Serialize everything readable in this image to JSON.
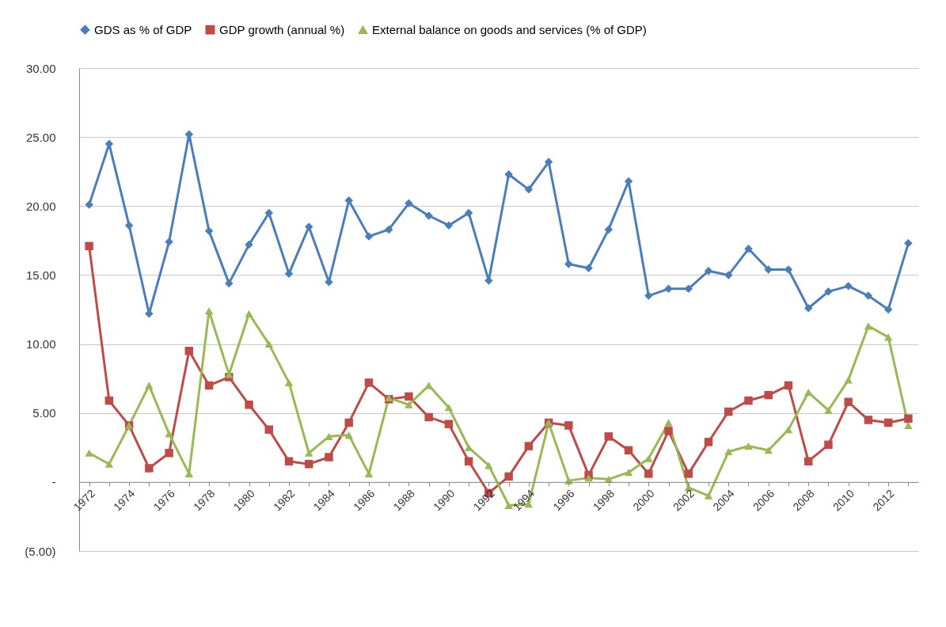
{
  "chart_data": {
    "type": "line",
    "categories": [
      "1972",
      null,
      "1974",
      null,
      "1976",
      null,
      "1978",
      null,
      "1980",
      null,
      "1982",
      null,
      "1984",
      null,
      "1986",
      null,
      "1988",
      null,
      "1990",
      null,
      "1992",
      null,
      "1994",
      null,
      "1996",
      null,
      "1998",
      null,
      "2000",
      null,
      "2002",
      null,
      "2004",
      null,
      "2006",
      null,
      "2008",
      null,
      "2010",
      null,
      "2012",
      null
    ],
    "series": [
      {
        "name": "GDS as % of GDP",
        "color": "#4a7ebb",
        "marker": "diamond",
        "values": [
          20.1,
          24.5,
          18.6,
          12.2,
          17.4,
          25.2,
          18.2,
          14.4,
          17.2,
          19.5,
          15.1,
          18.5,
          14.5,
          20.4,
          17.8,
          18.3,
          20.2,
          19.3,
          18.6,
          19.5,
          14.6,
          22.3,
          21.2,
          23.2,
          15.8,
          15.5,
          18.3,
          21.8,
          13.5,
          14.0,
          14.0,
          15.3,
          15.0,
          16.9,
          15.4,
          15.4,
          12.6,
          13.8,
          14.2,
          13.5,
          12.5,
          17.3
        ]
      },
      {
        "name": "GDP growth (annual %)",
        "color": "#be4b48",
        "marker": "square",
        "values": [
          17.1,
          5.9,
          4.1,
          1.0,
          2.1,
          9.5,
          7.0,
          7.6,
          5.6,
          3.8,
          1.5,
          1.3,
          1.8,
          4.3,
          7.2,
          6.0,
          6.2,
          4.7,
          4.2,
          1.5,
          -0.8,
          0.4,
          2.6,
          4.3,
          4.1,
          0.5,
          3.3,
          2.3,
          0.6,
          3.7,
          0.6,
          2.9,
          5.1,
          5.9,
          6.3,
          7.0,
          1.5,
          2.7,
          5.8,
          4.5,
          4.3,
          4.6
        ]
      },
      {
        "name": "External balance on goods and services (% of GDP)",
        "color": "#98b954",
        "marker": "triangle",
        "values": [
          2.1,
          1.3,
          4.1,
          7.0,
          3.5,
          0.6,
          12.4,
          7.8,
          12.2,
          10.0,
          7.2,
          2.1,
          3.3,
          3.4,
          0.6,
          6.1,
          5.6,
          7.0,
          5.4,
          2.5,
          1.2,
          -1.7,
          -1.6,
          4.3,
          0.1,
          0.3,
          0.2,
          0.7,
          1.7,
          4.3,
          -0.4,
          -1.0,
          2.2,
          2.6,
          2.3,
          3.8,
          6.5,
          5.2,
          7.4,
          11.3,
          10.5,
          4.1
        ]
      }
    ],
    "ylim": [
      -5,
      30
    ],
    "yticks": [
      {
        "value": -5,
        "label": "(5.00)"
      },
      {
        "value": 0,
        "label": "-"
      },
      {
        "value": 5,
        "label": "5.00"
      },
      {
        "value": 10,
        "label": "10.00"
      },
      {
        "value": 15,
        "label": "15.00"
      },
      {
        "value": 20,
        "label": "20.00"
      },
      {
        "value": 25,
        "label": "25.00"
      },
      {
        "value": 30,
        "label": "30.00"
      }
    ],
    "grid": "y",
    "legend": "top",
    "line_style": "solid"
  }
}
